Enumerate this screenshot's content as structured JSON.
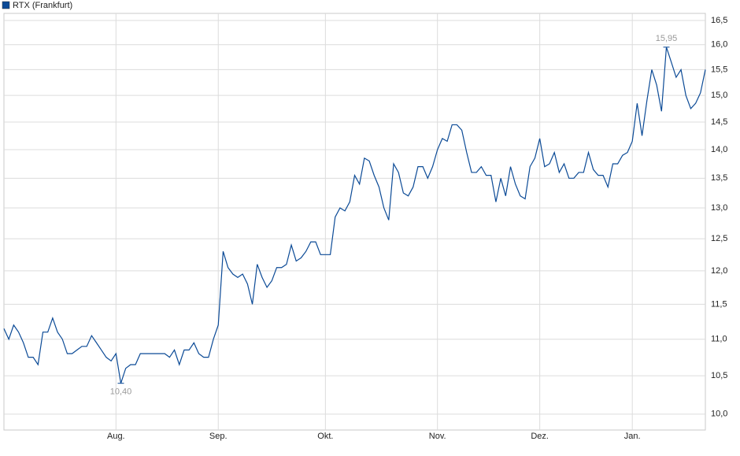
{
  "chart_data": {
    "type": "line",
    "y_scale": "log",
    "grid": true,
    "legend": "top-left",
    "categories": [
      null,
      null,
      null,
      null,
      null,
      null,
      null,
      null,
      null,
      null,
      null,
      null,
      null,
      null,
      null,
      null,
      null,
      null,
      null,
      null,
      null,
      null,
      null,
      "Aug.",
      null,
      null,
      null,
      null,
      null,
      null,
      null,
      null,
      null,
      null,
      null,
      null,
      null,
      null,
      null,
      null,
      null,
      null,
      null,
      null,
      "Sep.",
      null,
      null,
      null,
      null,
      null,
      null,
      null,
      null,
      null,
      null,
      null,
      null,
      null,
      null,
      null,
      null,
      null,
      null,
      null,
      null,
      null,
      "Okt.",
      null,
      null,
      null,
      null,
      null,
      null,
      null,
      null,
      null,
      null,
      null,
      null,
      null,
      null,
      null,
      null,
      null,
      null,
      null,
      null,
      null,
      null,
      "Nov.",
      null,
      null,
      null,
      null,
      null,
      null,
      null,
      null,
      null,
      null,
      null,
      null,
      null,
      null,
      null,
      null,
      null,
      null,
      null,
      null,
      "Dez.",
      null,
      null,
      null,
      null,
      null,
      null,
      null,
      null,
      null,
      null,
      null,
      null,
      null,
      null,
      null,
      null,
      null,
      null,
      "Jan.",
      null,
      null,
      null,
      null,
      null,
      null,
      null,
      null,
      null,
      null,
      null,
      null,
      null,
      null,
      null
    ],
    "series": [
      {
        "name": "RTX (Frankfurt)",
        "color": "#0b4a96",
        "values": [
          11.15,
          11.0,
          11.2,
          11.1,
          10.95,
          10.75,
          10.75,
          10.65,
          11.1,
          11.1,
          11.3,
          11.1,
          11.0,
          10.8,
          10.8,
          10.85,
          10.9,
          10.9,
          11.05,
          10.95,
          10.85,
          10.75,
          10.7,
          10.8,
          10.4,
          10.6,
          10.65,
          10.65,
          10.8,
          10.8,
          10.8,
          10.8,
          10.8,
          10.8,
          10.75,
          10.85,
          10.65,
          10.85,
          10.85,
          10.95,
          10.8,
          10.75,
          10.75,
          11.0,
          11.2,
          12.3,
          12.05,
          11.95,
          11.9,
          11.95,
          11.8,
          11.5,
          12.1,
          11.9,
          11.75,
          11.85,
          12.05,
          12.05,
          12.1,
          12.4,
          12.15,
          12.2,
          12.3,
          12.45,
          12.45,
          12.25,
          12.25,
          12.25,
          12.85,
          13.0,
          12.95,
          13.1,
          13.55,
          13.4,
          13.85,
          13.8,
          13.55,
          13.35,
          13.0,
          12.8,
          13.75,
          13.6,
          13.25,
          13.2,
          13.35,
          13.7,
          13.7,
          13.5,
          13.7,
          14.0,
          14.2,
          14.15,
          14.45,
          14.45,
          14.35,
          13.95,
          13.6,
          13.6,
          13.7,
          13.55,
          13.55,
          13.1,
          13.5,
          13.2,
          13.7,
          13.4,
          13.2,
          13.15,
          13.7,
          13.85,
          14.2,
          13.7,
          13.75,
          13.95,
          13.6,
          13.75,
          13.5,
          13.5,
          13.6,
          13.6,
          13.95,
          13.65,
          13.55,
          13.55,
          13.35,
          13.75,
          13.75,
          13.9,
          13.95,
          14.15,
          14.85,
          14.25,
          14.9,
          15.5,
          15.2,
          14.7,
          15.95,
          15.65,
          15.35,
          15.5,
          15.0,
          14.75,
          14.85,
          15.05,
          15.5
        ],
        "value_labels": [
          null,
          null,
          null,
          null,
          null,
          null,
          null,
          null,
          null,
          null,
          null,
          null,
          null,
          null,
          null,
          null,
          null,
          null,
          null,
          null,
          null,
          null,
          null,
          null,
          "10,40",
          null,
          null,
          null,
          null,
          null,
          null,
          null,
          null,
          null,
          null,
          null,
          null,
          null,
          null,
          null,
          null,
          null,
          null,
          null,
          null,
          null,
          null,
          null,
          null,
          null,
          null,
          null,
          null,
          null,
          null,
          null,
          null,
          null,
          null,
          null,
          null,
          null,
          null,
          null,
          null,
          null,
          null,
          null,
          null,
          null,
          null,
          null,
          null,
          null,
          null,
          null,
          null,
          null,
          null,
          null,
          null,
          null,
          null,
          null,
          null,
          null,
          null,
          null,
          null,
          null,
          null,
          null,
          null,
          null,
          null,
          null,
          null,
          null,
          null,
          null,
          null,
          null,
          null,
          null,
          null,
          null,
          null,
          null,
          null,
          null,
          null,
          null,
          null,
          null,
          null,
          null,
          null,
          null,
          null,
          null,
          null,
          null,
          null,
          null,
          null,
          null,
          null,
          null,
          null,
          null,
          null,
          null,
          null,
          null,
          null,
          null,
          "15,95",
          null,
          null,
          null,
          null,
          null,
          null,
          null,
          null
        ]
      }
    ],
    "ylim": [
      9.8,
      16.65
    ],
    "yticks": [
      {
        "value": 10.0,
        "label": "10,0"
      },
      {
        "value": 10.5,
        "label": "10,5"
      },
      {
        "value": 11.0,
        "label": "11,0"
      },
      {
        "value": 11.5,
        "label": "11,5"
      },
      {
        "value": 12.0,
        "label": "12,0"
      },
      {
        "value": 12.5,
        "label": "12,5"
      },
      {
        "value": 13.0,
        "label": "13,0"
      },
      {
        "value": 13.5,
        "label": "13,5"
      },
      {
        "value": 14.0,
        "label": "14,0"
      },
      {
        "value": 14.5,
        "label": "14,5"
      },
      {
        "value": 15.0,
        "label": "15,0"
      },
      {
        "value": 15.5,
        "label": "15,5"
      },
      {
        "value": 16.0,
        "label": "16,0"
      },
      {
        "value": 16.5,
        "label": "16,5"
      }
    ]
  }
}
